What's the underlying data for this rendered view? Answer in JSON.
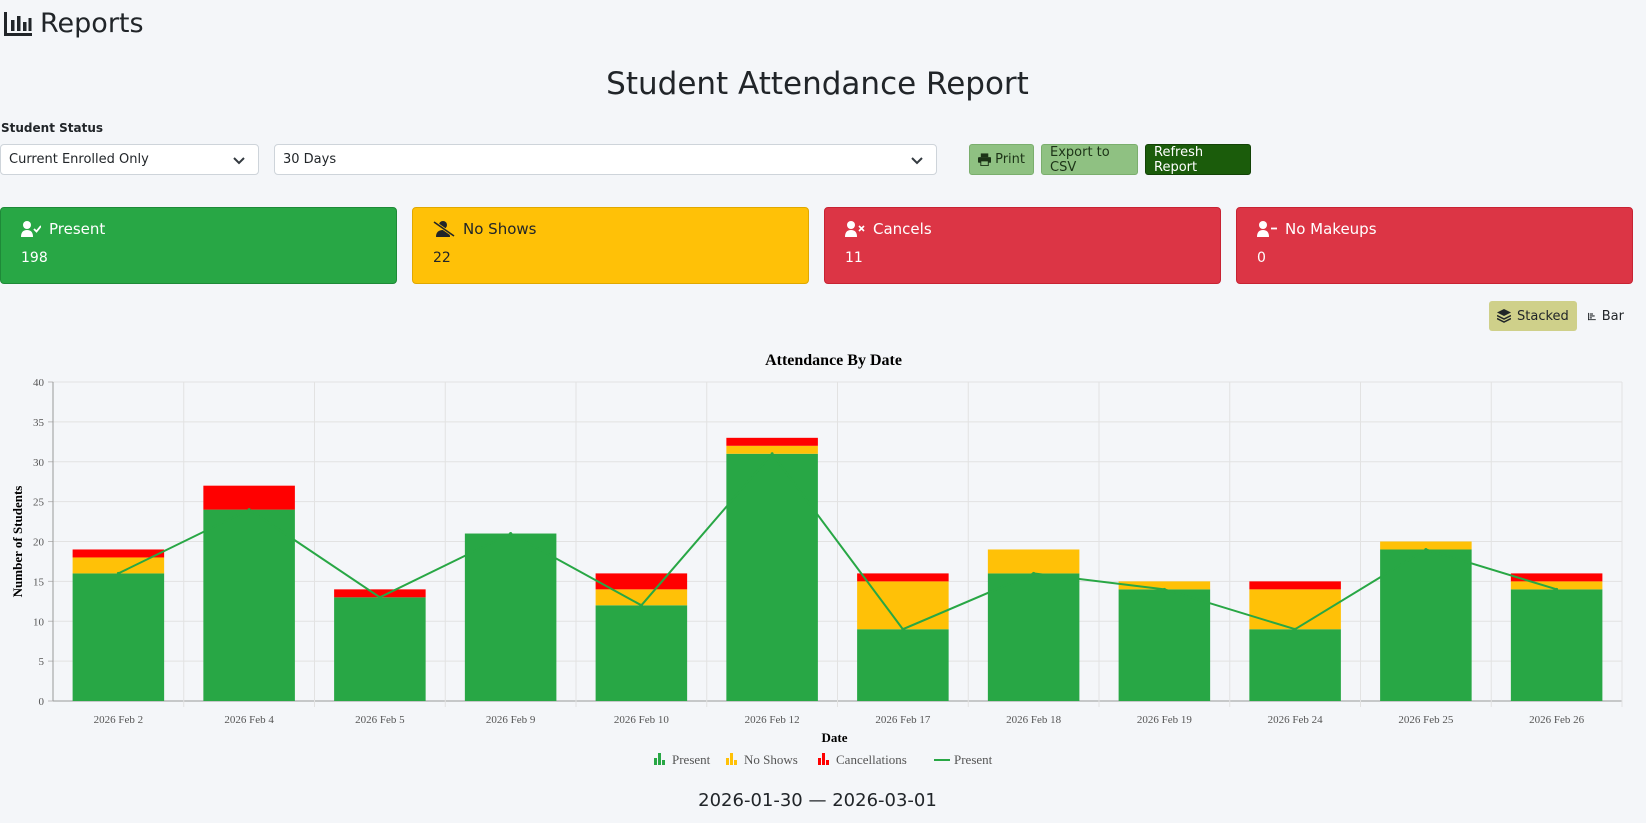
{
  "header": {
    "title": "Reports",
    "icon": "chart-bar-icon"
  },
  "report_title": "Student Attendance Report",
  "filters": {
    "status_label": "Student Status",
    "status_value": "Current Enrolled Only",
    "range_value": "30 Days"
  },
  "buttons": {
    "print": "Print",
    "export": "Export to CSV",
    "refresh": "Refresh Report"
  },
  "cards": {
    "present": {
      "label": "Present",
      "value": "198",
      "icon": "user-check-icon",
      "color": "#28a745"
    },
    "no_shows": {
      "label": "No Shows",
      "value": "22",
      "icon": "user-slash-icon",
      "color": "#ffc107"
    },
    "cancels": {
      "label": "Cancels",
      "value": "11",
      "icon": "user-times-icon",
      "color": "#dc3545"
    },
    "no_makeups": {
      "label": "No Makeups",
      "value": "0",
      "icon": "user-minus-icon",
      "color": "#dc3545"
    }
  },
  "view_toggle": {
    "stacked": "Stacked",
    "bar": "Bar",
    "active": "stacked"
  },
  "date_range": "2026-01-30 — 2026-03-01",
  "chart_data": {
    "type": "bar",
    "stacked": true,
    "title": "Attendance By Date",
    "xlabel": "Date",
    "ylabel": "Number of Students",
    "ylim": [
      0,
      40
    ],
    "yticks": [
      0,
      5,
      10,
      15,
      20,
      25,
      30,
      35,
      40
    ],
    "grid": true,
    "legend_position": "bottom",
    "categories": [
      "2026 Feb 2",
      "2026 Feb 4",
      "2026 Feb 5",
      "2026 Feb 9",
      "2026 Feb 10",
      "2026 Feb 12",
      "2026 Feb 17",
      "2026 Feb 18",
      "2026 Feb 19",
      "2026 Feb 24",
      "2026 Feb 25",
      "2026 Feb 26"
    ],
    "series": [
      {
        "name": "Present",
        "kind": "bar",
        "color": "#28a745",
        "values": [
          16,
          24,
          13,
          21,
          12,
          31,
          9,
          16,
          14,
          9,
          19,
          14
        ]
      },
      {
        "name": "No Shows",
        "kind": "bar",
        "color": "#ffc107",
        "values": [
          2,
          0,
          0,
          0,
          2,
          1,
          6,
          3,
          1,
          5,
          1,
          1
        ]
      },
      {
        "name": "Cancellations",
        "kind": "bar",
        "color": "#ff0000",
        "values": [
          1,
          3,
          1,
          0,
          2,
          1,
          1,
          0,
          0,
          1,
          0,
          1
        ]
      },
      {
        "name": "Present",
        "kind": "line",
        "color": "#28a745",
        "values": [
          16,
          24,
          13,
          21,
          12,
          31,
          9,
          16,
          14,
          9,
          19,
          14
        ]
      }
    ]
  }
}
